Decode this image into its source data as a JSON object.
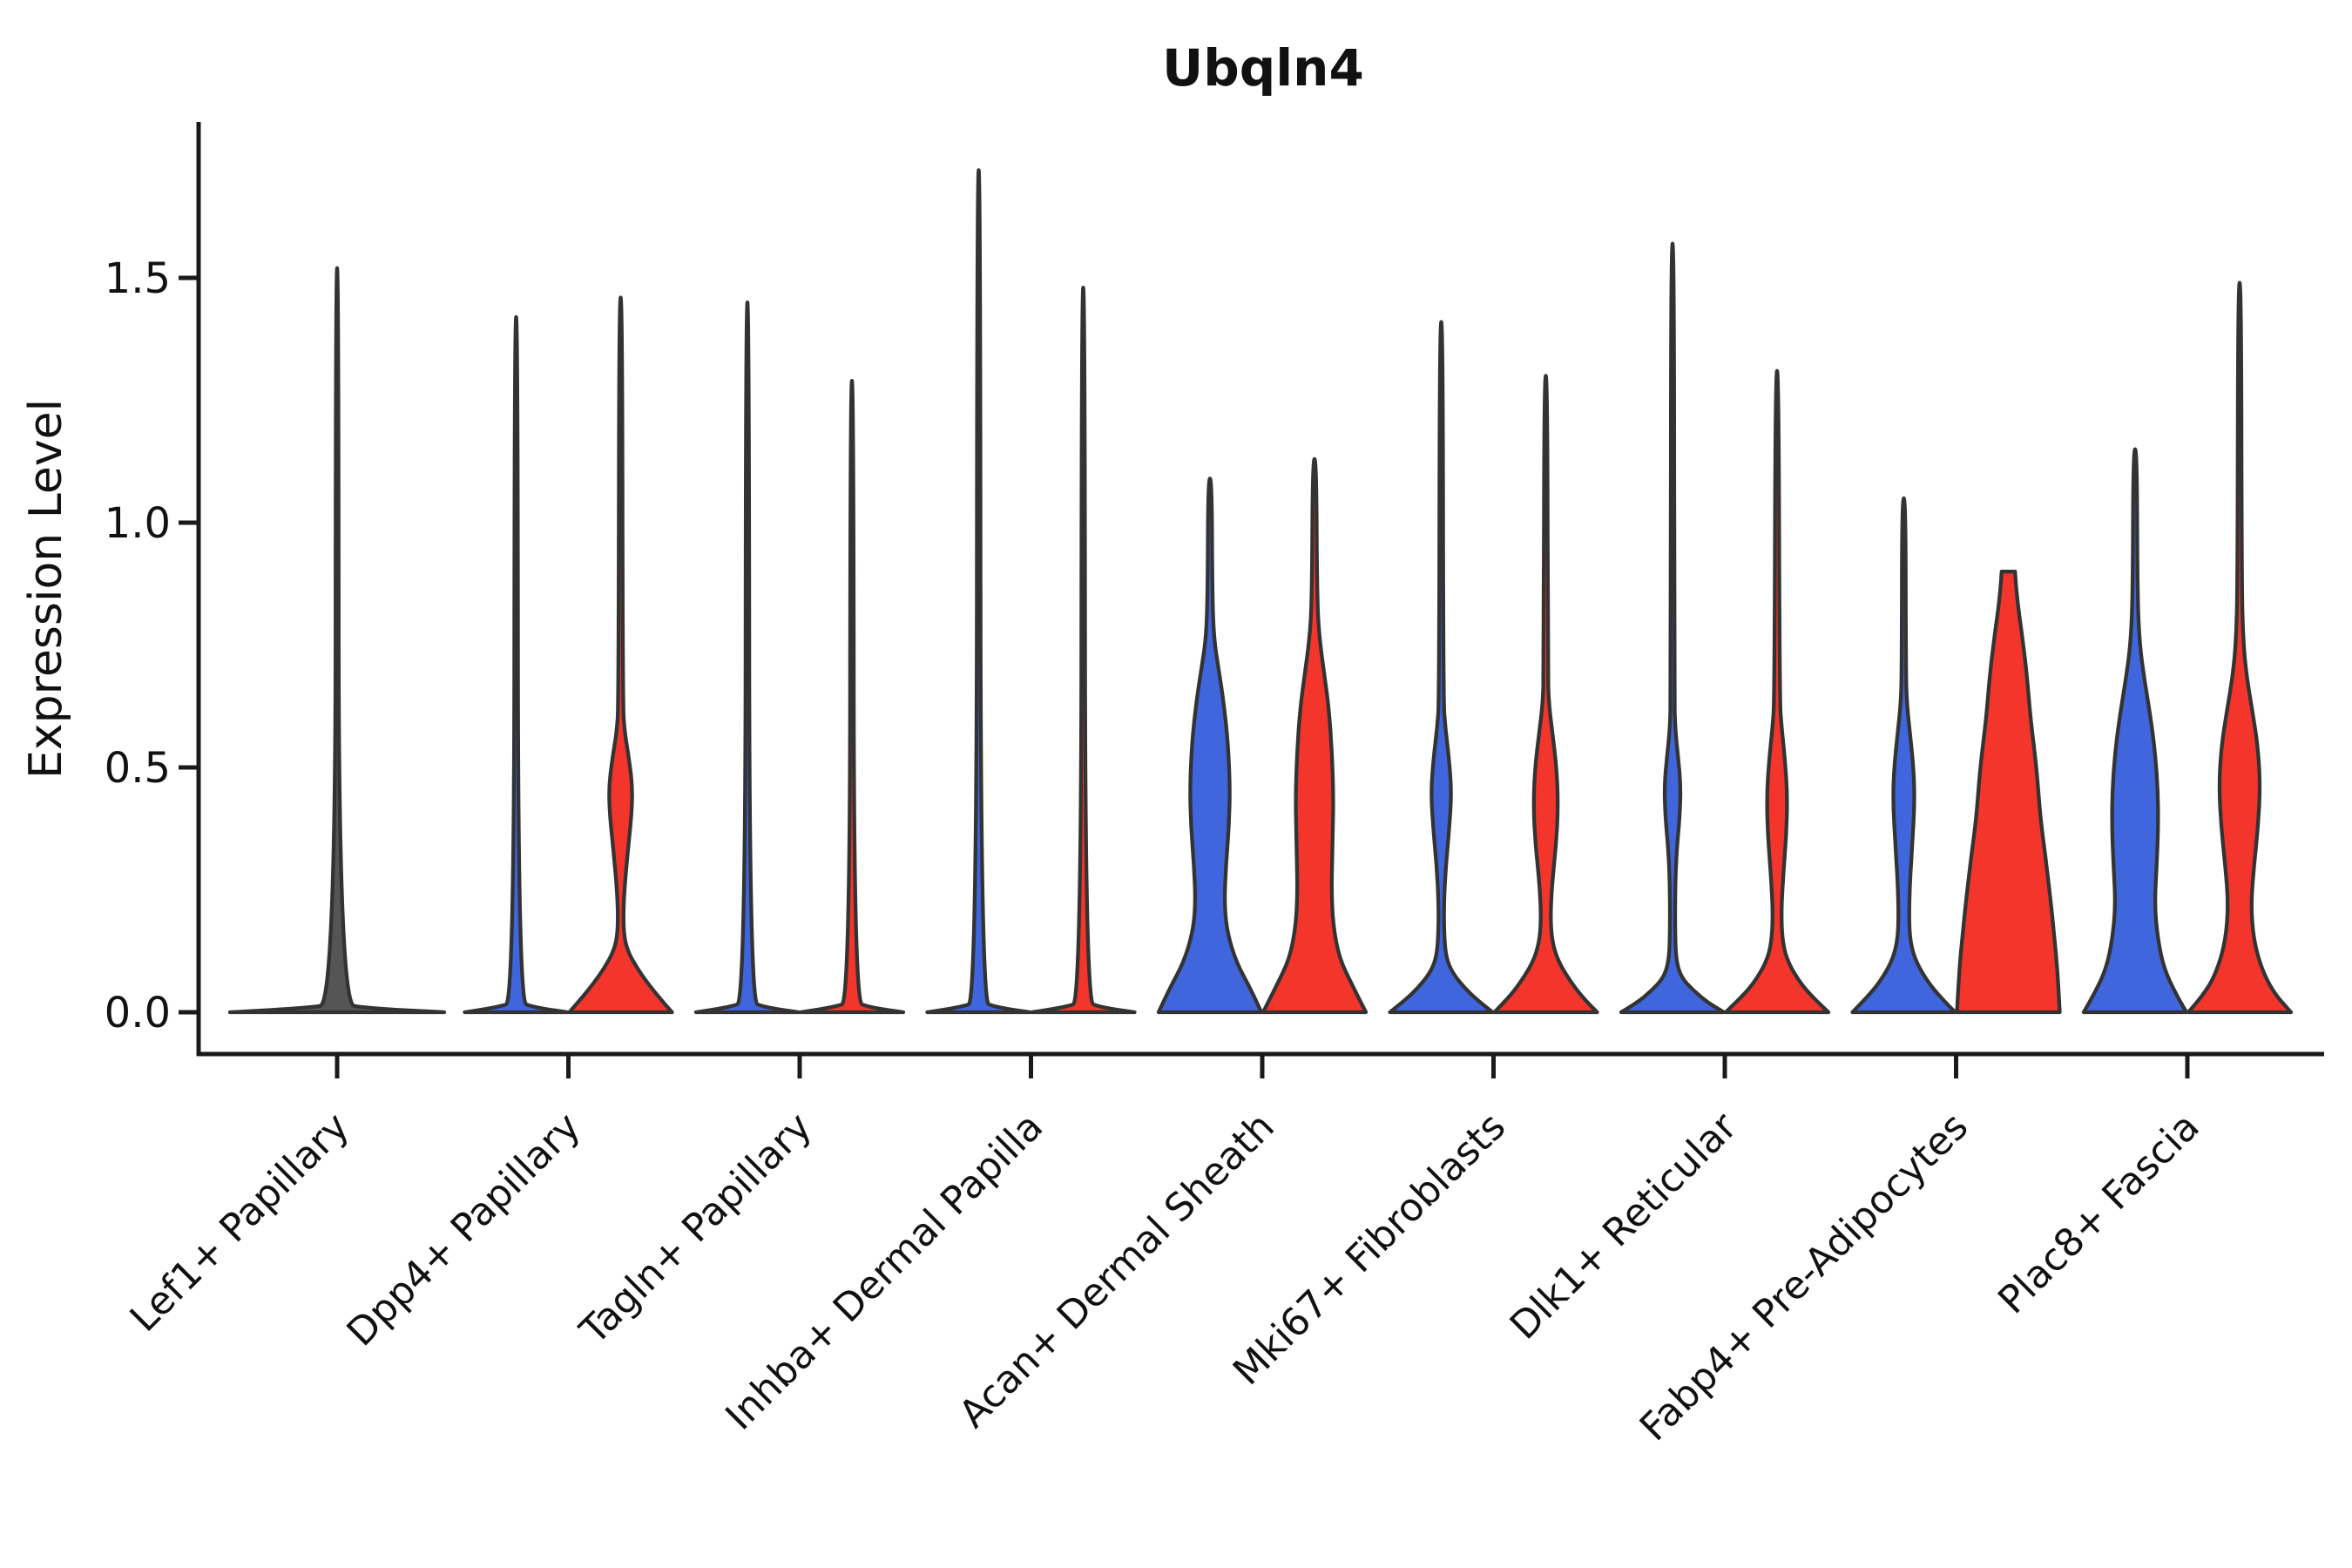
{
  "chart_data": {
    "type": "violin",
    "title": "Ubqln4",
    "ylabel": "Expression Level",
    "xlabel": "",
    "grid": "off",
    "legend": "none",
    "ylim": [
      -0.11,
      1.82
    ],
    "ytick_labels": [
      "0.0",
      "0.5",
      "1.0",
      "1.5"
    ],
    "ytick_values": [
      0.0,
      0.5,
      1.0,
      1.5
    ],
    "categories": [
      "Lef1+ Papillary",
      "Dpp4+ Papillary",
      "Tagln+ Papillary",
      "Inhba+ Dermal Papilla",
      "Acan+ Dermal Sheath",
      "Mki67+ Fibroblasts",
      "Dlk1+ Reticular",
      "Fabp4+ Pre-Adipocytes",
      "Plac8+ Fascia"
    ],
    "colors": {
      "blue": "#4066DE",
      "red": "#F3352B",
      "single": "#555555",
      "outline": "#333333",
      "axis": "#1a1a1a"
    },
    "violins": [
      {
        "category": "Lef1+ Papillary",
        "group": "single",
        "max_expression": 1.52,
        "flat_top": false,
        "profile": [
          [
            0,
            1.0
          ],
          [
            0.008,
            0.3
          ],
          [
            0.018,
            0.016
          ],
          [
            1.52,
            0.013
          ]
        ]
      },
      {
        "category": "Dpp4+ Papillary",
        "group": "blue",
        "max_expression": 1.42,
        "flat_top": false,
        "profile": [
          [
            0,
            1.0
          ],
          [
            0.01,
            0.35
          ],
          [
            0.022,
            0.04
          ],
          [
            1.42,
            0.03
          ]
        ]
      },
      {
        "category": "Dpp4+ Papillary",
        "group": "red",
        "max_expression": 1.46,
        "flat_top": false,
        "profile": [
          [
            0,
            1.0
          ],
          [
            0.03,
            0.75
          ],
          [
            0.06,
            0.52
          ],
          [
            0.09,
            0.32
          ],
          [
            0.12,
            0.16
          ],
          [
            0.15,
            0.07
          ],
          [
            0.2,
            0.05
          ],
          [
            0.26,
            0.08
          ],
          [
            0.33,
            0.14
          ],
          [
            0.4,
            0.21
          ],
          [
            0.46,
            0.23
          ],
          [
            0.52,
            0.16
          ],
          [
            0.57,
            0.08
          ],
          [
            0.63,
            0.04
          ],
          [
            1.46,
            0.03
          ]
        ]
      },
      {
        "category": "Tagln+ Papillary",
        "group": "blue",
        "max_expression": 1.45,
        "flat_top": false,
        "profile": [
          [
            0,
            1.0
          ],
          [
            0.01,
            0.35
          ],
          [
            0.022,
            0.04
          ],
          [
            1.45,
            0.03
          ]
        ]
      },
      {
        "category": "Tagln+ Papillary",
        "group": "red",
        "max_expression": 1.29,
        "flat_top": false,
        "profile": [
          [
            0,
            1.0
          ],
          [
            0.01,
            0.35
          ],
          [
            0.022,
            0.04
          ],
          [
            1.29,
            0.03
          ]
        ]
      },
      {
        "category": "Inhba+ Dermal Papilla",
        "group": "blue",
        "max_expression": 1.72,
        "flat_top": false,
        "profile": [
          [
            0,
            1.0
          ],
          [
            0.01,
            0.35
          ],
          [
            0.022,
            0.04
          ],
          [
            1.72,
            0.03
          ]
        ]
      },
      {
        "category": "Inhba+ Dermal Papilla",
        "group": "red",
        "max_expression": 1.48,
        "flat_top": false,
        "profile": [
          [
            0,
            1.0
          ],
          [
            0.01,
            0.35
          ],
          [
            0.022,
            0.04
          ],
          [
            1.48,
            0.03
          ]
        ]
      },
      {
        "category": "Acan+ Dermal Sheath",
        "group": "blue",
        "max_expression": 1.09,
        "flat_top": false,
        "profile": [
          [
            0,
            1.0
          ],
          [
            0.05,
            0.78
          ],
          [
            0.1,
            0.52
          ],
          [
            0.16,
            0.34
          ],
          [
            0.22,
            0.28
          ],
          [
            0.3,
            0.31
          ],
          [
            0.38,
            0.37
          ],
          [
            0.46,
            0.39
          ],
          [
            0.55,
            0.35
          ],
          [
            0.63,
            0.27
          ],
          [
            0.7,
            0.17
          ],
          [
            0.76,
            0.08
          ],
          [
            0.85,
            0.045
          ],
          [
            1.09,
            0.035
          ]
        ]
      },
      {
        "category": "Acan+ Dermal Sheath",
        "group": "red",
        "max_expression": 1.13,
        "flat_top": false,
        "profile": [
          [
            0,
            1.0
          ],
          [
            0.05,
            0.76
          ],
          [
            0.11,
            0.48
          ],
          [
            0.18,
            0.36
          ],
          [
            0.25,
            0.33
          ],
          [
            0.34,
            0.35
          ],
          [
            0.44,
            0.37
          ],
          [
            0.53,
            0.34
          ],
          [
            0.62,
            0.28
          ],
          [
            0.69,
            0.19
          ],
          [
            0.76,
            0.1
          ],
          [
            0.84,
            0.05
          ],
          [
            1.13,
            0.035
          ]
        ]
      },
      {
        "category": "Mki67+ Fibroblasts",
        "group": "blue",
        "max_expression": 1.41,
        "flat_top": false,
        "profile": [
          [
            0,
            1.0
          ],
          [
            0.025,
            0.7
          ],
          [
            0.05,
            0.45
          ],
          [
            0.08,
            0.22
          ],
          [
            0.11,
            0.1
          ],
          [
            0.15,
            0.06
          ],
          [
            0.22,
            0.05
          ],
          [
            0.3,
            0.09
          ],
          [
            0.38,
            0.16
          ],
          [
            0.45,
            0.2
          ],
          [
            0.52,
            0.15
          ],
          [
            0.58,
            0.08
          ],
          [
            0.64,
            0.04
          ],
          [
            1.41,
            0.03
          ]
        ]
      },
      {
        "category": "Mki67+ Fibroblasts",
        "group": "red",
        "max_expression": 1.3,
        "flat_top": false,
        "profile": [
          [
            0,
            1.0
          ],
          [
            0.03,
            0.72
          ],
          [
            0.06,
            0.5
          ],
          [
            0.1,
            0.26
          ],
          [
            0.14,
            0.13
          ],
          [
            0.19,
            0.09
          ],
          [
            0.26,
            0.12
          ],
          [
            0.34,
            0.2
          ],
          [
            0.42,
            0.24
          ],
          [
            0.5,
            0.21
          ],
          [
            0.57,
            0.13
          ],
          [
            0.63,
            0.06
          ],
          [
            0.7,
            0.04
          ],
          [
            1.3,
            0.03
          ]
        ]
      },
      {
        "category": "Dlk1+ Reticular",
        "group": "blue",
        "max_expression": 1.57,
        "flat_top": false,
        "profile": [
          [
            0,
            1.0
          ],
          [
            0.02,
            0.68
          ],
          [
            0.045,
            0.4
          ],
          [
            0.07,
            0.18
          ],
          [
            0.1,
            0.08
          ],
          [
            0.15,
            0.05
          ],
          [
            0.25,
            0.05
          ],
          [
            0.33,
            0.08
          ],
          [
            0.4,
            0.14
          ],
          [
            0.46,
            0.16
          ],
          [
            0.52,
            0.11
          ],
          [
            0.58,
            0.05
          ],
          [
            0.65,
            0.035
          ],
          [
            1.57,
            0.03
          ]
        ]
      },
      {
        "category": "Dlk1+ Reticular",
        "group": "red",
        "max_expression": 1.31,
        "flat_top": false,
        "profile": [
          [
            0,
            1.0
          ],
          [
            0.03,
            0.7
          ],
          [
            0.06,
            0.45
          ],
          [
            0.1,
            0.22
          ],
          [
            0.14,
            0.11
          ],
          [
            0.2,
            0.08
          ],
          [
            0.28,
            0.12
          ],
          [
            0.36,
            0.18
          ],
          [
            0.44,
            0.2
          ],
          [
            0.51,
            0.16
          ],
          [
            0.58,
            0.09
          ],
          [
            0.64,
            0.05
          ],
          [
            1.31,
            0.03
          ]
        ]
      },
      {
        "category": "Fabp4+ Pre-Adipocytes",
        "group": "blue",
        "max_expression": 1.05,
        "flat_top": false,
        "profile": [
          [
            0,
            1.0
          ],
          [
            0.03,
            0.72
          ],
          [
            0.06,
            0.48
          ],
          [
            0.1,
            0.25
          ],
          [
            0.14,
            0.13
          ],
          [
            0.19,
            0.1
          ],
          [
            0.27,
            0.12
          ],
          [
            0.35,
            0.17
          ],
          [
            0.43,
            0.21
          ],
          [
            0.5,
            0.19
          ],
          [
            0.57,
            0.12
          ],
          [
            0.63,
            0.06
          ],
          [
            0.7,
            0.04
          ],
          [
            1.05,
            0.035
          ]
        ]
      },
      {
        "category": "Fabp4+ Pre-Adipocytes",
        "group": "red",
        "max_expression": 0.9,
        "flat_top": true,
        "profile": [
          [
            0,
            1.0
          ],
          [
            0.08,
            0.96
          ],
          [
            0.16,
            0.89
          ],
          [
            0.24,
            0.81
          ],
          [
            0.32,
            0.72
          ],
          [
            0.4,
            0.62
          ],
          [
            0.5,
            0.55
          ],
          [
            0.6,
            0.43
          ],
          [
            0.68,
            0.37
          ],
          [
            0.76,
            0.28
          ],
          [
            0.82,
            0.2
          ],
          [
            0.87,
            0.15
          ],
          [
            0.9,
            0.13
          ]
        ]
      },
      {
        "category": "Plac8+ Fascia",
        "group": "blue",
        "max_expression": 1.15,
        "flat_top": false,
        "profile": [
          [
            0,
            1.0
          ],
          [
            0.04,
            0.78
          ],
          [
            0.09,
            0.56
          ],
          [
            0.15,
            0.44
          ],
          [
            0.22,
            0.38
          ],
          [
            0.3,
            0.42
          ],
          [
            0.38,
            0.45
          ],
          [
            0.46,
            0.44
          ],
          [
            0.54,
            0.38
          ],
          [
            0.61,
            0.29
          ],
          [
            0.68,
            0.18
          ],
          [
            0.75,
            0.09
          ],
          [
            0.85,
            0.045
          ],
          [
            1.15,
            0.035
          ]
        ]
      },
      {
        "category": "Plac8+ Fascia",
        "group": "red",
        "max_expression": 1.49,
        "flat_top": false,
        "profile": [
          [
            0,
            1.0
          ],
          [
            0.04,
            0.66
          ],
          [
            0.09,
            0.42
          ],
          [
            0.15,
            0.27
          ],
          [
            0.22,
            0.22
          ],
          [
            0.3,
            0.28
          ],
          [
            0.38,
            0.36
          ],
          [
            0.46,
            0.4
          ],
          [
            0.54,
            0.36
          ],
          [
            0.62,
            0.24
          ],
          [
            0.69,
            0.13
          ],
          [
            0.76,
            0.07
          ],
          [
            0.88,
            0.04
          ],
          [
            1.49,
            0.03
          ]
        ]
      }
    ]
  }
}
